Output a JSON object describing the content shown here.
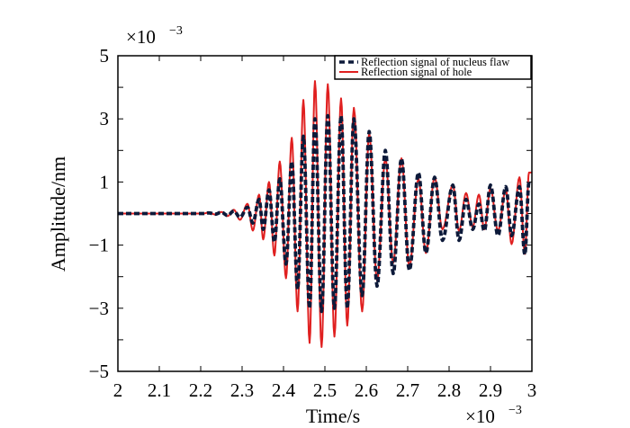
{
  "chart_data": {
    "type": "line",
    "title": "",
    "xlabel": "Time/s",
    "ylabel": "Amplitude/nm",
    "x_multiplier": "×10",
    "x_multiplier_exp": "−3",
    "y_multiplier": "×10",
    "y_multiplier_exp": "−3",
    "xlim": [
      2,
      3
    ],
    "ylim": [
      -5,
      5
    ],
    "x_ticks": [
      "2",
      "2.1",
      "2.2",
      "2.3",
      "2.4",
      "2.5",
      "2.6",
      "2.7",
      "2.8",
      "2.9",
      "3"
    ],
    "x_tick_values": [
      2,
      2.1,
      2.2,
      2.3,
      2.4,
      2.5,
      2.6,
      2.7,
      2.8,
      2.9,
      3
    ],
    "y_ticks": [
      "5",
      "3",
      "1",
      "−1",
      "−3",
      "−5"
    ],
    "y_tick_values": [
      5,
      3,
      1,
      -1,
      -3,
      -5
    ],
    "legend_position": "top-right",
    "note": "",
    "t_max": [
      2.22,
      2.25,
      2.28,
      2.313,
      2.341,
      2.365,
      2.391,
      2.42,
      2.448,
      2.476,
      2.507,
      2.539,
      2.57,
      2.607,
      2.646,
      2.685,
      2.726,
      2.765,
      2.809,
      2.841,
      2.872,
      2.9,
      2.937,
      2.97,
      2.993
    ],
    "t_min": [
      2.235,
      2.265,
      2.295,
      2.326,
      2.351,
      2.378,
      2.406,
      2.434,
      2.463,
      2.492,
      2.523,
      2.554,
      2.59,
      2.626,
      2.665,
      2.704,
      2.744,
      2.784,
      2.824,
      2.857,
      2.885,
      2.918,
      2.951,
      2.983
    ],
    "series": [
      {
        "name": "Reflection signal of nucleus flaw",
        "color": "#0d1a3a",
        "style": "dashed",
        "maxima": [
          0.02,
          0.04,
          0.08,
          0.2,
          0.45,
          0.75,
          1.1,
          1.65,
          2.45,
          3.0,
          3.1,
          3.1,
          3.0,
          2.6,
          2.0,
          1.75,
          1.3,
          1.15,
          0.9,
          0.45,
          0.3,
          0.9,
          0.85,
          0.85,
          1.0
        ],
        "minima": [
          -0.02,
          -0.06,
          -0.12,
          -0.3,
          -0.5,
          -0.9,
          -1.6,
          -2.4,
          -3.0,
          -3.1,
          -3.0,
          -3.0,
          -2.6,
          -2.3,
          -1.9,
          -1.8,
          -1.25,
          -0.85,
          -0.85,
          -0.5,
          -0.55,
          -0.7,
          -0.7,
          -1.3
        ],
        "end_value": 1.0
      },
      {
        "name": "Reflection signal of hole",
        "color": "#e02020",
        "style": "solid",
        "maxima": [
          0.03,
          0.05,
          0.12,
          0.31,
          0.6,
          1.0,
          1.65,
          2.4,
          3.6,
          4.2,
          4.1,
          3.65,
          3.35,
          2.55,
          1.75,
          1.75,
          1.1,
          1.15,
          0.9,
          0.65,
          0.6,
          0.8,
          0.75,
          1.15,
          1.3
        ],
        "minima": [
          -0.03,
          -0.08,
          -0.2,
          -0.54,
          -0.82,
          -1.33,
          -2.05,
          -3.1,
          -4.1,
          -4.23,
          -3.9,
          -3.55,
          -3.1,
          -2.13,
          -1.56,
          -1.68,
          -1.25,
          -0.5,
          -0.55,
          -0.43,
          -0.5,
          -0.55,
          -0.97,
          -1.28
        ],
        "end_value": 1.3
      }
    ]
  }
}
